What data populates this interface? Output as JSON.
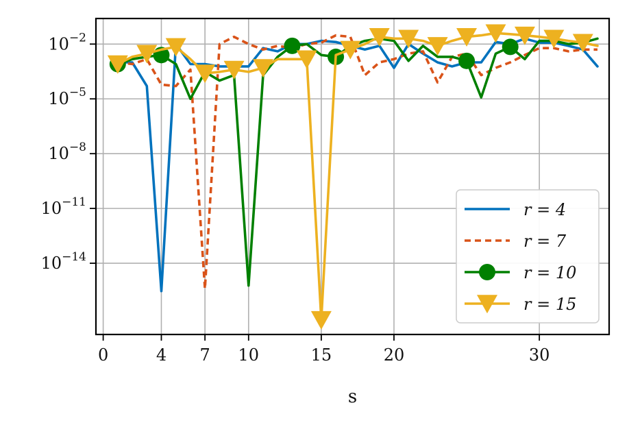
{
  "chart_data": {
    "type": "line",
    "title": "",
    "xlabel": "s",
    "ylabel": "",
    "yscale": "log",
    "xlim": [
      -0.5,
      34.8
    ],
    "ylim_exp": [
      -17.9,
      -0.6
    ],
    "grid": true,
    "legend_position": "bottom-right",
    "x_ticks": [
      0,
      4,
      7,
      10,
      15,
      20,
      30
    ],
    "y_ticks": [
      {
        "base": "10",
        "exp": "−2",
        "value": 0.01
      },
      {
        "base": "10",
        "exp": "−5",
        "value": 1e-05
      },
      {
        "base": "10",
        "exp": "−8",
        "value": 1e-08
      },
      {
        "base": "10",
        "exp": "−11",
        "value": 1e-11
      },
      {
        "base": "10",
        "exp": "−14",
        "value": 1e-14
      }
    ],
    "x": [
      1,
      2,
      3,
      4,
      5,
      6,
      7,
      8,
      9,
      10,
      11,
      12,
      13,
      14,
      15,
      16,
      17,
      18,
      19,
      20,
      21,
      22,
      23,
      24,
      25,
      26,
      27,
      28,
      29,
      30,
      31,
      32,
      33,
      34
    ],
    "series": [
      {
        "name": "r = 4",
        "color": "#0072BD",
        "dash": "",
        "marker": "none",
        "values": [
          0.001,
          0.001,
          5e-05,
          3e-16,
          0.01,
          0.0008,
          0.0008,
          0.0006,
          0.0006,
          0.0006,
          0.006,
          0.004,
          0.01,
          0.01,
          0.015,
          0.013,
          0.008,
          0.005,
          0.008,
          0.0005,
          0.01,
          0.003,
          0.001,
          0.0006,
          0.001,
          0.001,
          0.013,
          0.01,
          0.02,
          0.012,
          0.012,
          0.008,
          0.005,
          0.0006
        ]
      },
      {
        "name": "r = 7",
        "color": "#D95319",
        "dash": "9 6",
        "marker": "none",
        "values": [
          0.001,
          0.0008,
          0.0015,
          6e-05,
          5e-05,
          0.0004,
          4e-16,
          0.01,
          0.025,
          0.01,
          0.005,
          0.008,
          0.006,
          0.01,
          0.012,
          0.03,
          0.025,
          0.0002,
          0.001,
          0.0015,
          0.003,
          0.004,
          8e-05,
          0.002,
          0.003,
          0.0002,
          0.0005,
          0.001,
          0.0025,
          0.006,
          0.006,
          0.004,
          0.005,
          0.005
        ]
      },
      {
        "name": "r = 10",
        "color": "#008000",
        "dash": "",
        "marker": "circle",
        "values": [
          0.0008,
          0.0015,
          0.002,
          0.0025,
          0.0008,
          1e-05,
          0.0003,
          0.0001,
          0.0002,
          6e-16,
          0.0002,
          0.002,
          0.008,
          0.01,
          0.0025,
          0.002,
          0.008,
          0.015,
          0.02,
          0.015,
          0.0012,
          0.008,
          0.002,
          0.002,
          0.0012,
          1.2e-05,
          0.003,
          0.007,
          0.0015,
          0.015,
          0.015,
          0.01,
          0.012,
          0.02
        ]
      },
      {
        "name": "r = 15",
        "color": "#EDB120",
        "dash": "",
        "marker": "triangle-down",
        "values": [
          0.0008,
          0.002,
          0.003,
          0.005,
          0.007,
          0.0015,
          0.00025,
          0.0003,
          0.0004,
          0.0003,
          0.0005,
          0.0015,
          0.0015,
          0.0015,
          8e-18,
          0.0025,
          0.005,
          0.01,
          0.025,
          0.02,
          0.02,
          0.015,
          0.008,
          0.015,
          0.025,
          0.03,
          0.04,
          0.035,
          0.03,
          0.025,
          0.02,
          0.015,
          0.012,
          0.008
        ]
      }
    ],
    "markers": [
      {
        "series": 2,
        "x": [
          1,
          4,
          13,
          16,
          25,
          28
        ]
      },
      {
        "series": 3,
        "x": [
          1,
          3,
          5,
          7,
          9,
          11,
          14,
          15,
          17,
          19,
          21,
          23,
          25,
          27,
          29,
          31,
          33
        ]
      }
    ],
    "legend": [
      {
        "label": "r = 4"
      },
      {
        "label": "r = 7"
      },
      {
        "label": "r = 10"
      },
      {
        "label": "r = 15"
      }
    ]
  }
}
